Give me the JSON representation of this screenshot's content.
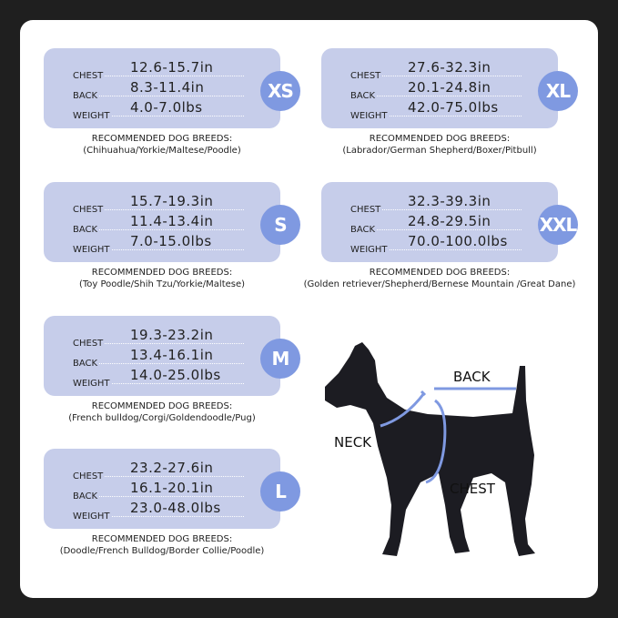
{
  "labels": {
    "chest": "CHEST",
    "back": "BACK",
    "weight": "WEIGHT",
    "recommended": "RECOMMENDED DOG BREEDS:"
  },
  "sizes": [
    {
      "size": "XS",
      "chest": "12.6-15.7in",
      "back": "8.3-11.4in",
      "weight": "4.0-7.0lbs",
      "breeds": "(Chihuahua/Yorkie/Maltese/Poodle)"
    },
    {
      "size": "S",
      "chest": "15.7-19.3in",
      "back": "11.4-13.4in",
      "weight": "7.0-15.0lbs",
      "breeds": "(Toy Poodle/Shih Tzu/Yorkie/Maltese)"
    },
    {
      "size": "M",
      "chest": "19.3-23.2in",
      "back": "13.4-16.1in",
      "weight": "14.0-25.0lbs",
      "breeds": "(French bulldog/Corgi/Goldendoodle/Pug)"
    },
    {
      "size": "L",
      "chest": "23.2-27.6in",
      "back": "16.1-20.1in",
      "weight": "23.0-48.0lbs",
      "breeds": "(Doodle/French Bulldog/Border Collie/Poodle)"
    },
    {
      "size": "XL",
      "chest": "27.6-32.3in",
      "back": "20.1-24.8in",
      "weight": "42.0-75.0lbs",
      "breeds": "(Labrador/German Shepherd/Boxer/Pitbull)"
    },
    {
      "size": "XXL",
      "chest": "32.3-39.3in",
      "back": "24.8-29.5in",
      "weight": "70.0-100.0lbs",
      "breeds": "(Golden retriever/Shepherd/Bernese Mountain /Great Dane)"
    }
  ],
  "diagram": {
    "back": "BACK",
    "neck": "NECK",
    "chest": "CHEST"
  },
  "colors": {
    "card": "#c6cdea",
    "badge": "#7f99e1",
    "harness": "#7f99e1",
    "dog": "#1c1c22"
  }
}
